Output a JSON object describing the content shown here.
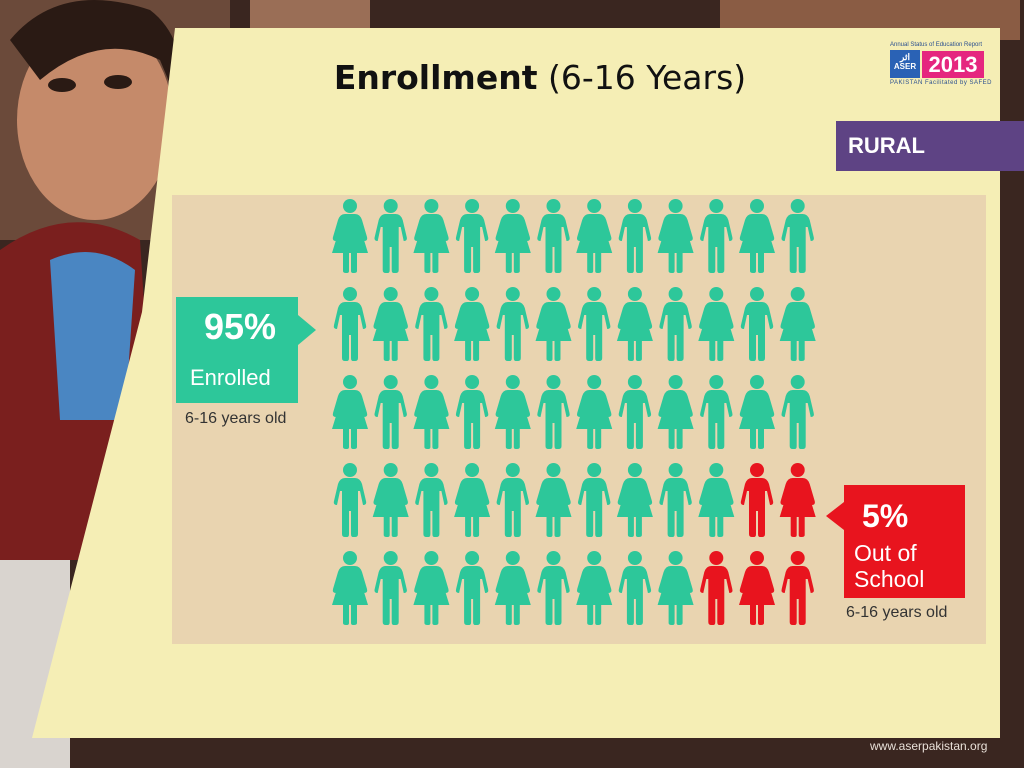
{
  "slide": {
    "title_bold": "Enrollment",
    "title_rest": " (6-16 Years)",
    "badge": "RURAL",
    "footer_url": "www.aserpakistan.org"
  },
  "logo": {
    "top_text": "Annual Status of Education Report",
    "aser_ar": "اثر",
    "aser": "ASER",
    "country": "PAKISTAN",
    "year": "2013",
    "facilitated": "Facilitated by SAFED"
  },
  "enrolled": {
    "percent": "95%",
    "label": "Enrolled",
    "age": "6-16 years old"
  },
  "out_of_school": {
    "percent": "5%",
    "label": "Out of School",
    "age": "6-16 years old"
  },
  "colors": {
    "enrolled": "#2dc79a",
    "out_of_school": "#e8141e",
    "badge": "#5e4384"
  },
  "chart_data": {
    "type": "pictograph",
    "unit": "child figure",
    "rows": 5,
    "columns": 12,
    "categories": [
      "Enrolled",
      "Out of School"
    ],
    "values": [
      95,
      5
    ],
    "grid": [
      [
        "F",
        "M",
        "F",
        "M",
        "F",
        "M",
        "F",
        "M",
        "F",
        "M",
        "F",
        "M"
      ],
      [
        "M",
        "F",
        "M",
        "F",
        "M",
        "F",
        "M",
        "F",
        "M",
        "F",
        "M",
        "F"
      ],
      [
        "F",
        "M",
        "F",
        "M",
        "F",
        "M",
        "F",
        "M",
        "F",
        "M",
        "F",
        "M"
      ],
      [
        "M",
        "F",
        "M",
        "F",
        "M",
        "F",
        "M",
        "F",
        "M",
        "F",
        "M",
        "F"
      ],
      [
        "F",
        "M",
        "F",
        "M",
        "F",
        "M",
        "F",
        "M",
        "F",
        "M",
        "F",
        "M"
      ]
    ],
    "out_of_school_cells": [
      [
        3,
        10
      ],
      [
        3,
        11
      ],
      [
        4,
        9
      ],
      [
        4,
        10
      ],
      [
        4,
        11
      ]
    ]
  }
}
